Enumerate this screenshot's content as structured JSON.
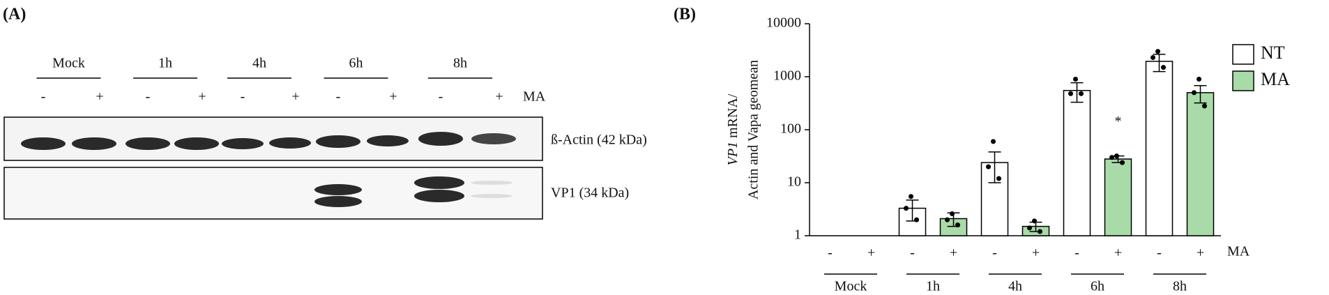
{
  "panel_a": {
    "label": "(A)",
    "groups": [
      "Mock",
      "1h",
      "4h",
      "6h",
      "8h"
    ],
    "signs": [
      "-",
      "+"
    ],
    "treatment_label": "MA",
    "blots": [
      "ß-Actin (42 kDa)",
      "VP1 (34 kDa)"
    ]
  },
  "chart_data": {
    "type": "bar",
    "panel_label": "(B)",
    "ylabel": {
      "italic": "VP1",
      "rest": " mRNA/",
      "line2": "Actin and Vapa geomean"
    },
    "categories": [
      "Mock",
      "1h",
      "4h",
      "6h",
      "8h"
    ],
    "signs": [
      "-",
      "+"
    ],
    "treatment_label": "MA",
    "series": [
      {
        "name": "NT",
        "color": "#ffffff",
        "values": [
          null,
          3.3,
          24,
          550,
          1950
        ],
        "errors": [
          null,
          1.4,
          14,
          220,
          700
        ],
        "points": [
          null,
          [
            5.5,
            3.3,
            2.0
          ],
          [
            60,
            20,
            12
          ],
          [
            900,
            480,
            480
          ],
          [
            3000,
            2300,
            1500
          ]
        ]
      },
      {
        "name": "MA",
        "color": "#a8dba8",
        "values": [
          null,
          2.1,
          1.5,
          28,
          500
        ],
        "errors": [
          null,
          0.6,
          0.3,
          4,
          180
        ],
        "points": [
          null,
          [
            2.6,
            2.0,
            1.6
          ],
          [
            1.9,
            1.4,
            1.2
          ],
          [
            32,
            30,
            24
          ],
          [
            900,
            500,
            280
          ]
        ]
      }
    ],
    "annotation": {
      "text": "*",
      "series": 1,
      "category": 3
    },
    "log_y": true,
    "ylim": [
      1,
      10000
    ],
    "yticks": [
      1,
      10,
      100,
      1000,
      10000
    ]
  }
}
